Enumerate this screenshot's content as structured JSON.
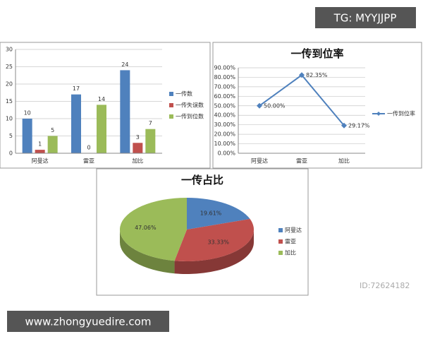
{
  "overlay": {
    "tag": "TG: MYYJJPP",
    "site": "www.zhongyuedire.com",
    "watermark_id": "ID:72624182"
  },
  "chart_data": [
    {
      "type": "bar",
      "categories": [
        "阿曼达",
        "雷亚",
        "加比"
      ],
      "series": [
        {
          "name": "一传数",
          "color": "#4f81bd",
          "values": [
            10,
            17,
            24
          ]
        },
        {
          "name": "一传失误数",
          "color": "#c0504d",
          "values": [
            1,
            0,
            3
          ]
        },
        {
          "name": "一传到位数",
          "color": "#9bbb59",
          "values": [
            5,
            14,
            7
          ]
        }
      ],
      "ylim": [
        0,
        30
      ],
      "yticks": [
        0,
        5,
        10,
        15,
        20,
        25,
        30
      ],
      "grid": true,
      "legend": "right"
    },
    {
      "type": "line",
      "title": "一传到位率",
      "categories": [
        "阿曼达",
        "雷亚",
        "加比"
      ],
      "series": [
        {
          "name": "一传到位率",
          "color": "#4f81bd",
          "values": [
            50,
            82.35,
            29.17
          ],
          "value_labels": [
            "50.00%",
            "82.35%",
            "29.17%"
          ]
        }
      ],
      "ylim": [
        0,
        90
      ],
      "yticks": [
        {
          "value": 0,
          "label": "0.00%"
        },
        {
          "value": 10,
          "label": "10.00%"
        },
        {
          "value": 20,
          "label": "20.00%"
        },
        {
          "value": 30,
          "label": "30.00%"
        },
        {
          "value": 40,
          "label": "40.00%"
        },
        {
          "value": 50,
          "label": "50.00%"
        },
        {
          "value": 60,
          "label": "60.00%"
        },
        {
          "value": 70,
          "label": "70.00%"
        },
        {
          "value": 80,
          "label": "80.00%"
        },
        {
          "value": 90,
          "label": "90.00%"
        }
      ],
      "grid": true,
      "legend": "right"
    },
    {
      "type": "pie",
      "title": "一传占比",
      "categories": [
        "阿曼达",
        "雷亚",
        "加比"
      ],
      "values": [
        19.61,
        33.33,
        47.06
      ],
      "value_labels": [
        "19.61%",
        "33.33%",
        "47.06%"
      ],
      "colors": [
        "#4f81bd",
        "#c0504d",
        "#9bbb59"
      ],
      "legend": "right"
    }
  ]
}
